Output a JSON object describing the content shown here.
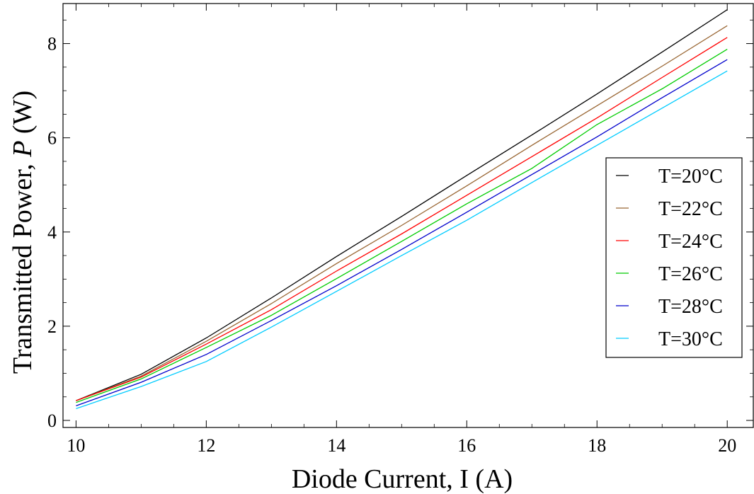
{
  "chart_data": {
    "type": "line",
    "title": "",
    "xlabel": "Diode Current, I (A)",
    "ylabel_prefix": "Transmitted Power, ",
    "ylabel_symbol": "P",
    "ylabel_suffix": " (W)",
    "xlim": [
      9.8,
      20.4
    ],
    "ylim": [
      -0.15,
      8.85
    ],
    "x_ticks": [
      10,
      12,
      14,
      16,
      18,
      20
    ],
    "x_tick_labels": [
      "10",
      "12",
      "14",
      "16",
      "18",
      "20"
    ],
    "y_ticks": [
      0,
      2,
      4,
      6,
      8
    ],
    "y_tick_labels": [
      "0",
      "2",
      "4",
      "6",
      "8"
    ],
    "grid": false,
    "legend_position": "right",
    "x": [
      10,
      11,
      12,
      13,
      14,
      15,
      16,
      17,
      18,
      19,
      20
    ],
    "series": [
      {
        "name": "T=20°C",
        "color": "#000000",
        "values": [
          0.42,
          0.98,
          1.75,
          2.6,
          3.48,
          4.33,
          5.2,
          6.06,
          6.93,
          7.82,
          8.72
        ]
      },
      {
        "name": "T=22°C",
        "color": "#996633",
        "values": [
          0.42,
          0.94,
          1.68,
          2.48,
          3.33,
          4.14,
          4.98,
          5.84,
          6.68,
          7.52,
          8.38
        ]
      },
      {
        "name": "T=24°C",
        "color": "#ff0000",
        "values": [
          0.42,
          0.92,
          1.62,
          2.35,
          3.17,
          3.96,
          4.78,
          5.6,
          6.42,
          7.28,
          8.13
        ]
      },
      {
        "name": "T=26°C",
        "color": "#00cc00",
        "values": [
          0.38,
          0.88,
          1.55,
          2.23,
          3.01,
          3.8,
          4.6,
          5.35,
          6.28,
          7.04,
          7.88
        ]
      },
      {
        "name": "T=28°C",
        "color": "#0000cc",
        "values": [
          0.31,
          0.81,
          1.4,
          2.12,
          2.86,
          3.63,
          4.42,
          5.22,
          6.02,
          6.85,
          7.66
        ]
      },
      {
        "name": "T=30°C",
        "color": "#00ccff",
        "values": [
          0.25,
          0.72,
          1.25,
          1.98,
          2.74,
          3.5,
          4.25,
          5.05,
          5.84,
          6.63,
          7.42
        ]
      }
    ]
  }
}
